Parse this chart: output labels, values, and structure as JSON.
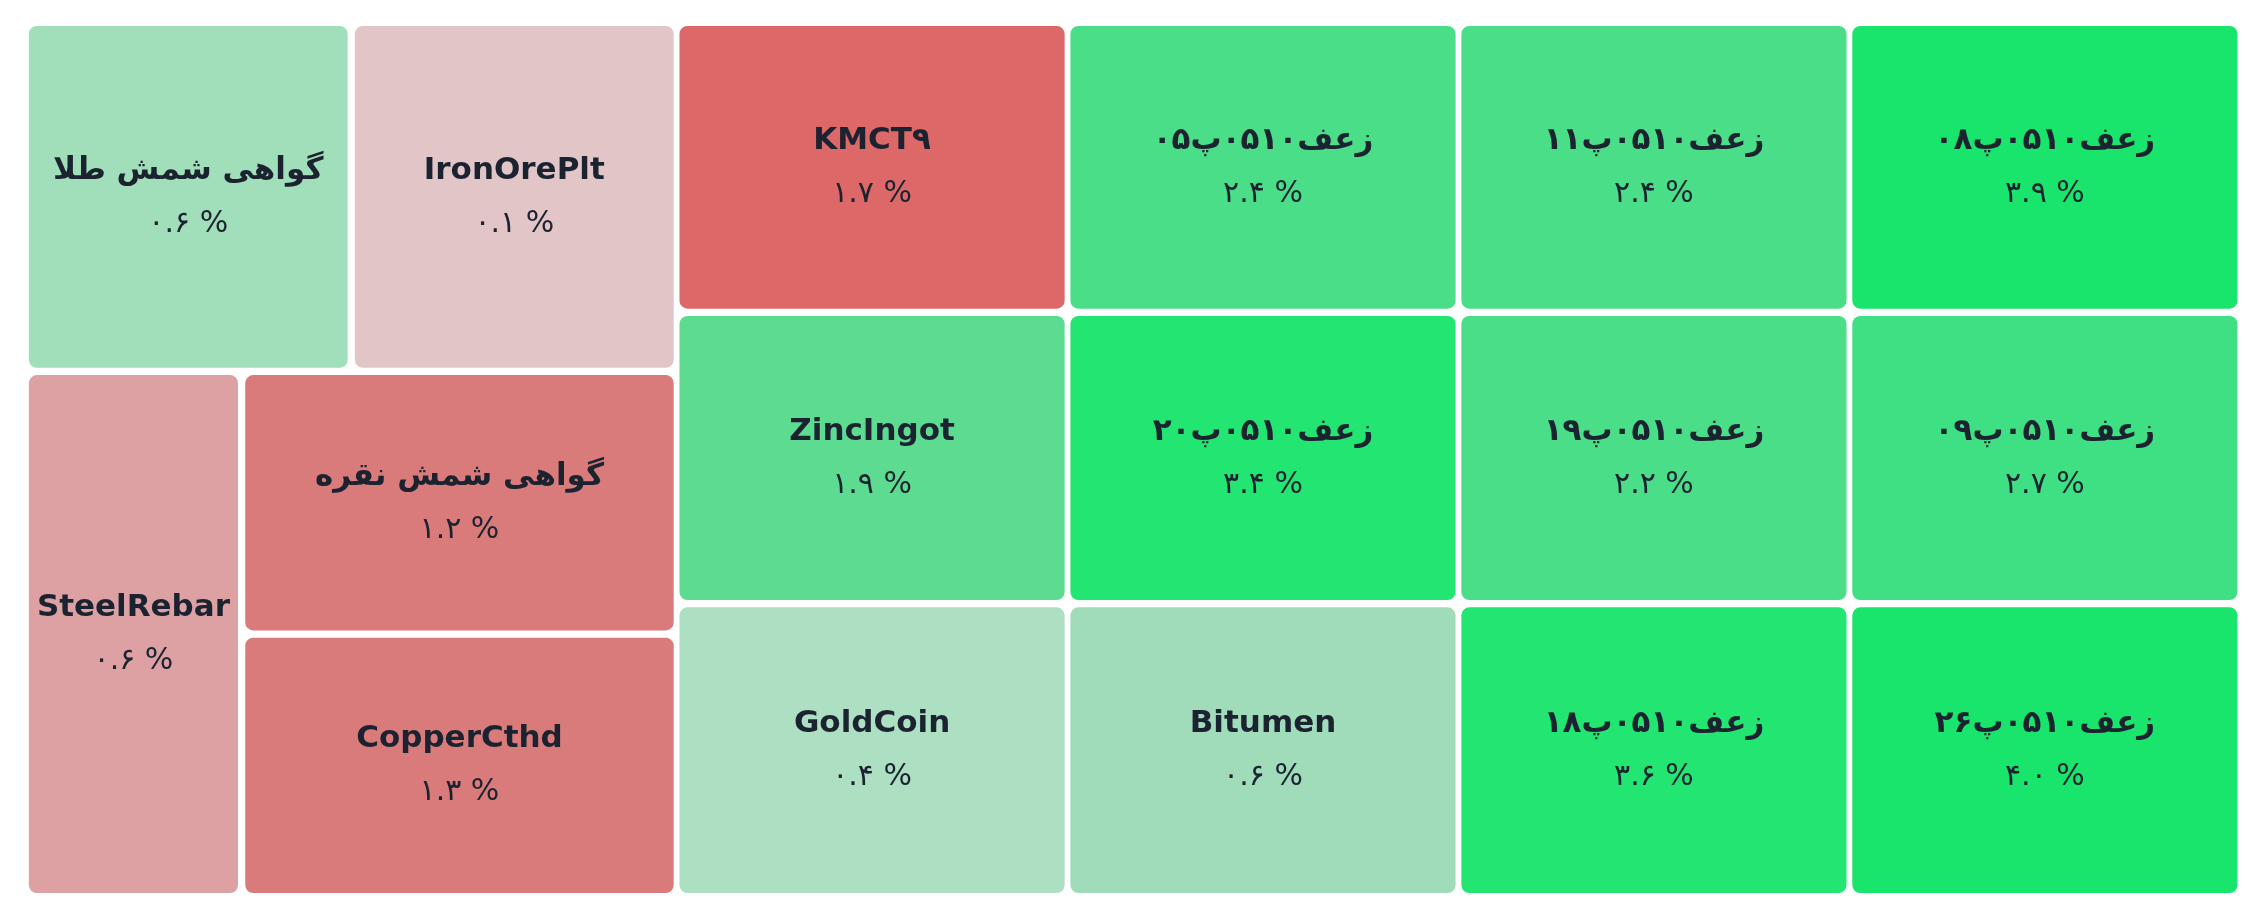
{
  "chart_data": {
    "type": "other",
    "categories": [
      "گواهی شمش طلا",
      "IronOrePlt",
      "KMCT۹",
      "زعف۰۵۱۰پ۰۵",
      "زعف۰۵۱۰پ۱۱",
      "زعف۰۵۱۰پ۰۸",
      "SteelRebar",
      "گواهی شمش نقره",
      "CopperCthd",
      "ZincIngot",
      "زعف۰۵۱۰پ۲۰",
      "زعف۰۵۱۰پ۱۹",
      "زعف۰۵۱۰پ۰۹",
      "GoldCoin",
      "Bitumen",
      "زعف۰۵۱۰پ۱۸",
      "زعف۰۵۱۰پ۲۶"
    ],
    "values": [
      0.6,
      0.1,
      1.7,
      2.4,
      2.4,
      3.9,
      0.6,
      1.2,
      1.3,
      1.9,
      3.4,
      2.2,
      2.7,
      0.4,
      0.6,
      3.6,
      4.0
    ],
    "value_labels": [
      "۰.۶ %",
      "۰.۱ %",
      "۱.۷ %",
      "۲.۴ %",
      "۲.۴ %",
      "۳.۹ %",
      "۰.۶ %",
      "۱.۲ %",
      "۱.۳ %",
      "۱.۹ %",
      "۳.۴ %",
      "۲.۲ %",
      "۲.۷ %",
      "۰.۴ %",
      "۰.۶ %",
      "۳.۶ %",
      "۴.۰ %"
    ],
    "colors": [
      "#a0dfb9",
      "#e2c5c7",
      "#dc6868",
      "#4ade88",
      "#4ade88",
      "#19e46b",
      "#dea1a3",
      "#da7b7b",
      "#da7b7b",
      "#5ddc91",
      "#22e572",
      "#4ade88",
      "#3ee083",
      "#addfc3",
      "#a0dcb9",
      "#22e572",
      "#19e46b"
    ]
  }
}
